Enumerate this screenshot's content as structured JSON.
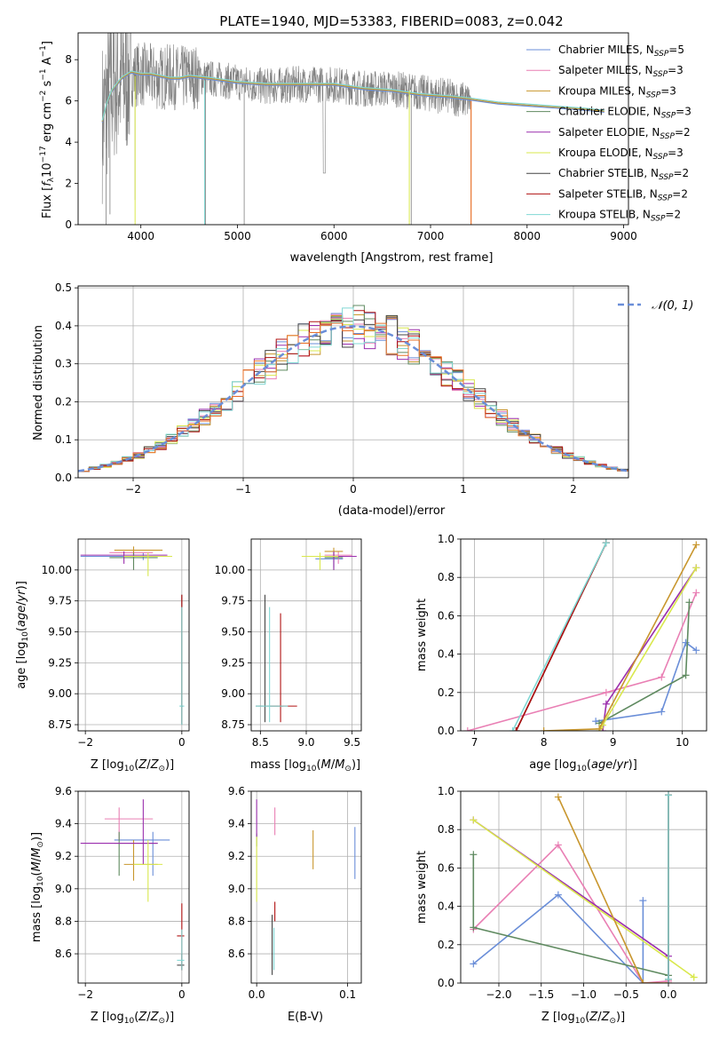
{
  "figure_title": "PLATE=1940, MJD=53383, FIBERID=0083, z=0.042",
  "colors": {
    "spectrum": "#808080",
    "axes": "#000000",
    "grid": "#b0b0b0",
    "normal": "#6a8ed8"
  },
  "models": [
    {
      "name": "Chabrier MILES",
      "nssp": "5",
      "color": "#6a8ed8"
    },
    {
      "name": "Salpeter MILES",
      "nssp": "3",
      "color": "#e97fb4"
    },
    {
      "name": "Kroupa MILES",
      "nssp": "3",
      "color": "#c8962d"
    },
    {
      "name": "Chabrier ELODIE",
      "nssp": "3",
      "color": "#5f8a60"
    },
    {
      "name": "Salpeter ELODIE",
      "nssp": "2",
      "color": "#9b2fae"
    },
    {
      "name": "Kroupa ELODIE",
      "nssp": "3",
      "color": "#d9e84d"
    },
    {
      "name": "Chabrier STELIB",
      "nssp": "2",
      "color": "#444444"
    },
    {
      "name": "Salpeter STELIB",
      "nssp": "2",
      "color": "#b01010"
    },
    {
      "name": "Kroupa STELIB",
      "nssp": "2",
      "color": "#80d8d4"
    }
  ],
  "chart_data": [
    {
      "id": "spectrum",
      "type": "line",
      "xlabel": "wavelength [Angstrom, rest frame]",
      "ylabel": "Flux [f_λ 10^-17 erg cm^-2 s^-1 A^-1]",
      "xlim": [
        3350,
        9050
      ],
      "ylim": [
        0,
        9.3
      ],
      "xticks": [
        4000,
        5000,
        6000,
        7000,
        8000,
        9000
      ],
      "yticks": [
        0,
        2,
        4,
        6,
        8
      ],
      "legend": "upper right",
      "series": [
        {
          "name": "data",
          "x": [
            3600,
            3650,
            3700,
            3750,
            3800,
            3900,
            4000,
            4100,
            4200,
            4300,
            4400,
            4500,
            4700,
            5000,
            5300,
            5600,
            6000,
            6300,
            6600,
            6900,
            7200,
            7400
          ],
          "y": [
            5.0,
            6.0,
            6.8,
            7.0,
            7.1,
            7.3,
            7.3,
            7.2,
            7.1,
            7.2,
            7.1,
            7.2,
            7.1,
            6.9,
            6.7,
            6.8,
            6.8,
            6.6,
            6.6,
            6.4,
            6.2,
            6.0
          ]
        },
        {
          "name": "model",
          "x": [
            3600,
            3650,
            3700,
            3750,
            3800,
            3900,
            4000,
            4100,
            4200,
            4300,
            4400,
            4500,
            4700,
            5000,
            5300,
            5600,
            6000,
            6300,
            6600,
            6900,
            7200,
            7400,
            7700,
            8000,
            8300,
            8600,
            8800
          ],
          "y": [
            5.0,
            5.9,
            6.5,
            6.8,
            7.1,
            7.4,
            7.3,
            7.3,
            7.2,
            7.1,
            7.1,
            7.2,
            7.1,
            6.9,
            6.8,
            6.8,
            6.8,
            6.6,
            6.5,
            6.3,
            6.2,
            6.1,
            5.9,
            5.8,
            5.7,
            5.6,
            5.5
          ]
        }
      ]
    },
    {
      "id": "residuals",
      "type": "line",
      "xlabel": "(data-model)/error",
      "ylabel": "Normed distribution",
      "xlim": [
        -2.5,
        2.5
      ],
      "ylim": [
        0,
        0.505
      ],
      "xticks": [
        -2,
        -1,
        0,
        1,
        2
      ],
      "yticks": [
        0.0,
        0.1,
        0.2,
        0.3,
        0.4,
        0.5
      ],
      "legend": "upper right",
      "normal_label": "𝒩(0, 1)",
      "bin_width": 0.1,
      "x_start": -2.5
    },
    {
      "id": "age_vs_Z",
      "type": "scatter",
      "xlabel": "Z [log10(Z/Z⊙)]",
      "ylabel": "age  [log10(age/yr)]",
      "xlim": [
        -2.15,
        0.15
      ],
      "ylim": [
        8.7,
        10.25
      ],
      "xticks": [
        -2,
        0
      ],
      "yticks": [
        8.75,
        9.0,
        9.25,
        9.5,
        9.75,
        10.0
      ],
      "points": [
        {
          "model": "Chabrier MILES",
          "x": -0.8,
          "y": 10.11,
          "x_lo": -2.1,
          "x_hi": -0.7,
          "y_lo": 10.08,
          "y_hi": 10.14
        },
        {
          "model": "Salpeter MILES",
          "x": -1.0,
          "y": 10.14,
          "x_lo": -1.5,
          "x_hi": -0.6,
          "y_lo": 10.0,
          "y_hi": 10.16
        },
        {
          "model": "Kroupa MILES",
          "x": -1.0,
          "y": 10.16,
          "x_lo": -1.4,
          "x_hi": -0.4,
          "y_lo": 10.12,
          "y_hi": 10.19
        },
        {
          "model": "Chabrier ELODIE",
          "x": -1.0,
          "y": 10.1,
          "x_lo": -1.5,
          "x_hi": -0.5,
          "y_lo": 10.0,
          "y_hi": 10.14
        },
        {
          "model": "Salpeter ELODIE",
          "x": -1.2,
          "y": 10.12,
          "x_lo": -2.1,
          "x_hi": -0.3,
          "y_lo": 10.05,
          "y_hi": 10.15
        },
        {
          "model": "Kroupa ELODIE",
          "x": -0.7,
          "y": 10.11,
          "x_lo": -1.2,
          "x_hi": -0.2,
          "y_lo": 9.95,
          "y_hi": 10.14
        },
        {
          "model": "Chabrier STELIB",
          "x": 0.0,
          "y": 8.9,
          "x_lo": -0.02,
          "x_hi": 0.02,
          "y_lo": 8.75,
          "y_hi": 9.8
        },
        {
          "model": "Salpeter STELIB",
          "x": 0.0,
          "y": 8.9,
          "x_lo": -0.02,
          "x_hi": 0.02,
          "y_lo": 8.76,
          "y_hi": 9.8
        },
        {
          "model": "Kroupa STELIB",
          "x": 0.0,
          "y": 8.9,
          "x_lo": -0.05,
          "x_hi": 0.05,
          "y_lo": 8.75,
          "y_hi": 9.7
        }
      ]
    },
    {
      "id": "age_vs_mass",
      "type": "scatter",
      "xlabel": "mass [log10(M/M⊙)]",
      "ylabel": "",
      "xlim": [
        8.4,
        9.6
      ],
      "ylim": [
        8.7,
        10.25
      ],
      "xticks": [
        8.5,
        9.0,
        9.5
      ],
      "yticks": [
        8.75,
        9.0,
        9.25,
        9.5,
        9.75,
        10.0
      ],
      "points": [
        {
          "model": "Chabrier MILES",
          "x": 9.3,
          "y": 10.09,
          "x_lo": 9.1,
          "x_hi": 9.4,
          "y_lo": 10.02,
          "y_hi": 10.14
        },
        {
          "model": "Salpeter MILES",
          "x": 9.35,
          "y": 10.12,
          "x_lo": 9.2,
          "x_hi": 9.5,
          "y_lo": 10.05,
          "y_hi": 10.15
        },
        {
          "model": "Kroupa MILES",
          "x": 9.3,
          "y": 10.15,
          "x_lo": 9.2,
          "x_hi": 9.4,
          "y_lo": 10.1,
          "y_hi": 10.18
        },
        {
          "model": "Chabrier ELODIE",
          "x": 9.3,
          "y": 10.1,
          "x_lo": 9.2,
          "x_hi": 9.4,
          "y_lo": 10.0,
          "y_hi": 10.14
        },
        {
          "model": "Salpeter ELODIE",
          "x": 9.3,
          "y": 10.11,
          "x_lo": 9.1,
          "x_hi": 9.55,
          "y_lo": 10.0,
          "y_hi": 10.15
        },
        {
          "model": "Kroupa ELODIE",
          "x": 9.15,
          "y": 10.11,
          "x_lo": 8.95,
          "x_hi": 9.35,
          "y_lo": 10.0,
          "y_hi": 10.14
        },
        {
          "model": "Chabrier STELIB",
          "x": 8.55,
          "y": 8.9,
          "x_lo": 8.45,
          "x_hi": 8.75,
          "y_lo": 8.77,
          "y_hi": 9.8
        },
        {
          "model": "Salpeter STELIB",
          "x": 8.72,
          "y": 8.9,
          "x_lo": 8.6,
          "x_hi": 8.9,
          "y_lo": 8.77,
          "y_hi": 9.65
        },
        {
          "model": "Kroupa STELIB",
          "x": 8.6,
          "y": 8.9,
          "x_lo": 8.45,
          "x_hi": 8.8,
          "y_lo": 8.77,
          "y_hi": 9.7
        }
      ]
    },
    {
      "id": "weight_vs_age",
      "type": "line",
      "xlabel": "age  [log10(age/yr)]",
      "ylabel": "mass weight",
      "xlim": [
        6.8,
        10.35
      ],
      "ylim": [
        0,
        1.0
      ],
      "xticks": [
        7,
        8,
        9,
        10
      ],
      "yticks": [
        0.0,
        0.2,
        0.4,
        0.6,
        0.8,
        1.0
      ],
      "series": [
        {
          "model": "Chabrier MILES",
          "x": [
            8.75,
            9.7,
            10.05,
            10.2
          ],
          "y": [
            0.05,
            0.1,
            0.46,
            0.42
          ]
        },
        {
          "model": "Salpeter MILES",
          "x": [
            6.9,
            8.9,
            9.7,
            10.2
          ],
          "y": [
            0.0,
            0.2,
            0.28,
            0.72
          ]
        },
        {
          "model": "Kroupa MILES",
          "x": [
            8.0,
            8.8,
            10.2
          ],
          "y": [
            0.0,
            0.01,
            0.97
          ]
        },
        {
          "model": "Chabrier ELODIE",
          "x": [
            8.8,
            10.05,
            10.1
          ],
          "y": [
            0.04,
            0.29,
            0.67
          ]
        },
        {
          "model": "Salpeter ELODIE",
          "x": [
            8.85,
            8.9,
            10.2
          ],
          "y": [
            0.0,
            0.14,
            0.85
          ]
        },
        {
          "model": "Kroupa ELODIE",
          "x": [
            8.8,
            8.85,
            10.2
          ],
          "y": [
            0.0,
            0.03,
            0.85
          ]
        },
        {
          "model": "Chabrier STELIB",
          "x": [
            7.6,
            8.9
          ],
          "y": [
            0.0,
            0.98
          ]
        },
        {
          "model": "Salpeter STELIB",
          "x": [
            7.6,
            8.9
          ],
          "y": [
            0.0,
            0.98
          ]
        },
        {
          "model": "Kroupa STELIB",
          "x": [
            7.55,
            8.9
          ],
          "y": [
            0.0,
            0.98
          ]
        }
      ]
    },
    {
      "id": "mass_vs_Z",
      "type": "scatter",
      "xlabel": "Z [log10(Z/Z⊙)]",
      "ylabel": "mass [log10(M/M⊙)]",
      "xlim": [
        -2.15,
        0.15
      ],
      "ylim": [
        8.42,
        9.6
      ],
      "xticks": [
        -2,
        0
      ],
      "yticks": [
        8.6,
        8.8,
        9.0,
        9.2,
        9.4,
        9.6
      ],
      "points": [
        {
          "model": "Chabrier MILES",
          "x": -0.6,
          "y": 9.3,
          "x_lo": -1.4,
          "x_hi": -0.25,
          "y_lo": 9.08,
          "y_hi": 9.35
        },
        {
          "model": "Salpeter MILES",
          "x": -1.3,
          "y": 9.43,
          "x_lo": -1.6,
          "x_hi": -0.6,
          "y_lo": 9.3,
          "y_hi": 9.5
        },
        {
          "model": "Kroupa MILES",
          "x": -1.0,
          "y": 9.15,
          "x_lo": -1.2,
          "x_hi": -0.5,
          "y_lo": 9.05,
          "y_hi": 9.3
        },
        {
          "model": "Chabrier ELODIE",
          "x": -1.3,
          "y": 9.28,
          "x_lo": -1.4,
          "x_hi": -0.5,
          "y_lo": 9.08,
          "y_hi": 9.35
        },
        {
          "model": "Salpeter ELODIE",
          "x": -0.8,
          "y": 9.28,
          "x_lo": -2.1,
          "x_hi": -0.5,
          "y_lo": 9.15,
          "y_hi": 9.55
        },
        {
          "model": "Kroupa ELODIE",
          "x": -0.7,
          "y": 9.15,
          "x_lo": -1.0,
          "x_hi": -0.4,
          "y_lo": 8.92,
          "y_hi": 9.3
        },
        {
          "model": "Chabrier STELIB",
          "x": 0.0,
          "y": 8.53,
          "x_lo": -0.1,
          "x_hi": 0.05,
          "y_lo": 8.5,
          "y_hi": 8.6
        },
        {
          "model": "Salpeter STELIB",
          "x": 0.0,
          "y": 8.71,
          "x_lo": -0.1,
          "x_hi": 0.05,
          "y_lo": 8.5,
          "y_hi": 8.91
        },
        {
          "model": "Kroupa STELIB",
          "x": 0.0,
          "y": 8.56,
          "x_lo": -0.1,
          "x_hi": 0.05,
          "y_lo": 8.5,
          "y_hi": 8.75
        }
      ]
    },
    {
      "id": "mass_vs_EBV",
      "type": "scatter",
      "xlabel": "E(B-V)",
      "ylabel": "",
      "xlim": [
        -0.006,
        0.115
      ],
      "ylim": [
        8.42,
        9.6
      ],
      "xticks": [
        0.0,
        0.1
      ],
      "yticks": [
        8.6,
        8.8,
        9.0,
        9.2,
        9.4,
        9.6
      ],
      "points": [
        {
          "model": "Chabrier MILES",
          "x": 0.108,
          "y": 9.22,
          "y_lo": 9.06,
          "y_hi": 9.38
        },
        {
          "model": "Salpeter MILES",
          "x": 0.02,
          "y": 9.42,
          "y_lo": 9.33,
          "y_hi": 9.5
        },
        {
          "model": "Kroupa MILES",
          "x": 0.062,
          "y": 9.24,
          "y_lo": 9.12,
          "y_hi": 9.36
        },
        {
          "model": "Chabrier ELODIE",
          "x": 0.0,
          "y": 9.3,
          "y_lo": 9.26,
          "y_hi": 9.34
        },
        {
          "model": "Salpeter ELODIE",
          "x": 0.0,
          "y": 9.44,
          "y_lo": 9.32,
          "y_hi": 9.55
        },
        {
          "model": "Kroupa ELODIE",
          "x": 0.0,
          "y": 9.08,
          "y_lo": 8.92,
          "y_hi": 9.32
        },
        {
          "model": "Chabrier STELIB",
          "x": 0.017,
          "y": 8.65,
          "y_lo": 8.47,
          "y_hi": 8.84
        },
        {
          "model": "Salpeter STELIB",
          "x": 0.02,
          "y": 8.86,
          "y_lo": 8.8,
          "y_hi": 8.92
        },
        {
          "model": "Kroupa STELIB",
          "x": 0.019,
          "y": 8.64,
          "y_lo": 8.5,
          "y_hi": 8.76
        }
      ]
    },
    {
      "id": "weight_vs_Z",
      "type": "line",
      "xlabel": "Z [log10(Z/Z⊙)]",
      "ylabel": "mass weight",
      "xlim": [
        -2.45,
        0.45
      ],
      "ylim": [
        0,
        1.0
      ],
      "xticks": [
        -2.0,
        -1.5,
        -1.0,
        -0.5,
        0.0
      ],
      "yticks": [
        0.0,
        0.2,
        0.4,
        0.6,
        0.8,
        1.0
      ],
      "series": [
        {
          "model": "Chabrier MILES",
          "x": [
            -2.3,
            -1.3,
            -0.3,
            -0.3
          ],
          "y": [
            0.1,
            0.46,
            0.0,
            0.43
          ]
        },
        {
          "model": "Salpeter MILES",
          "x": [
            -2.3,
            -1.3,
            -0.3,
            0.0
          ],
          "y": [
            0.28,
            0.72,
            0.0,
            0.01
          ]
        },
        {
          "model": "Kroupa MILES",
          "x": [
            -1.3,
            -0.3,
            0.0
          ],
          "y": [
            0.97,
            0.0,
            0.0
          ]
        },
        {
          "model": "Chabrier ELODIE",
          "x": [
            -2.3,
            -2.3,
            0.0
          ],
          "y": [
            0.67,
            0.29,
            0.04
          ]
        },
        {
          "model": "Salpeter ELODIE",
          "x": [
            -2.3,
            0.0,
            0.0
          ],
          "y": [
            0.85,
            0.14,
            0.0
          ]
        },
        {
          "model": "Kroupa ELODIE",
          "x": [
            -2.3,
            0.3,
            0.3
          ],
          "y": [
            0.85,
            0.03,
            0.03
          ]
        },
        {
          "model": "Chabrier STELIB",
          "x": [
            0.0,
            0.0
          ],
          "y": [
            0.02,
            0.98
          ]
        },
        {
          "model": "Salpeter STELIB",
          "x": [
            0.0,
            0.0
          ],
          "y": [
            0.02,
            0.98
          ]
        },
        {
          "model": "Kroupa STELIB",
          "x": [
            0.0,
            0.0
          ],
          "y": [
            0.02,
            0.98
          ]
        }
      ]
    }
  ]
}
